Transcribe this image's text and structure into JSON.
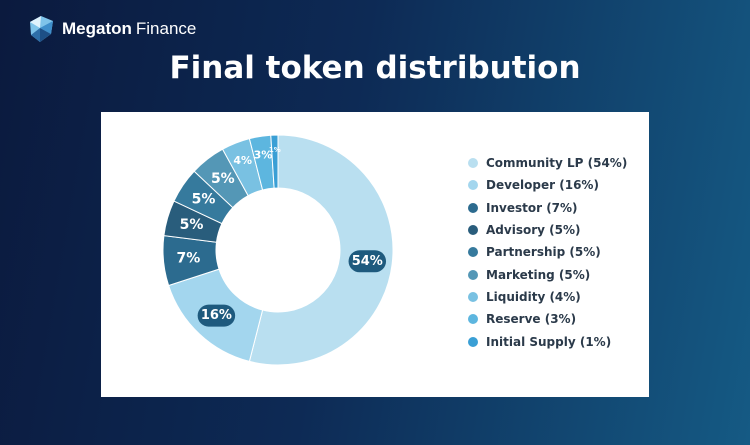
{
  "brand": {
    "name": "Megaton",
    "suffix": "Finance",
    "logo_icon": "megaton-crystal-logo-icon"
  },
  "title": "Final token distribution",
  "chart_data": {
    "type": "pie",
    "variant": "donut",
    "title": "Final token distribution",
    "legend_position": "right",
    "categories": [
      "Community LP (54%)",
      "Developer (16%)",
      "Investor (7%)",
      "Advisory (5%)",
      "Partnership (5%)",
      "Marketing (5%)",
      "Liquidity (4%)",
      "Reserve (3%)",
      "Initial Supply (1%)"
    ],
    "values": [
      54,
      16,
      7,
      5,
      5,
      5,
      4,
      3,
      1
    ],
    "slice_labels": [
      "54%",
      "16%",
      "7%",
      "5%",
      "5%",
      "5%",
      "4%",
      "3%",
      "1%"
    ],
    "colors": [
      "#b9dff0",
      "#a3d6ee",
      "#2c6b8f",
      "#295d7c",
      "#367a9d",
      "#5497b6",
      "#79c1e2",
      "#5db6df",
      "#3a9fd5"
    ],
    "label_badges": {
      "54%": {
        "fill": "#1e5a7e",
        "text": "#ffffff"
      },
      "16%": {
        "fill": "#1e5a7e",
        "text": "#ffffff"
      }
    }
  }
}
